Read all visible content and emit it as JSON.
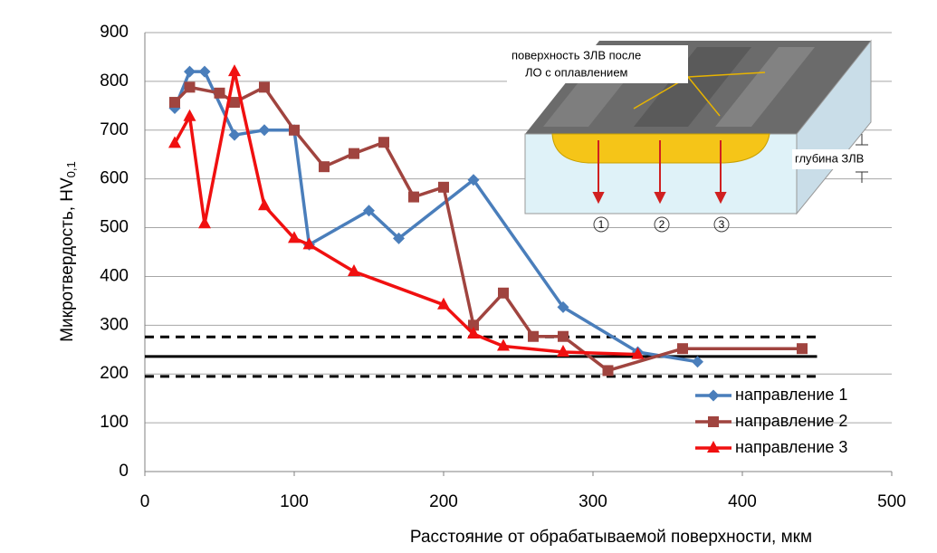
{
  "chart_data": {
    "type": "line",
    "y_label": {
      "text": "Микротвердость, HV",
      "subscript": "0,1"
    },
    "x_label": "Расстояние от обрабатываемой поверхности, мкм",
    "xlim": [
      0,
      500
    ],
    "xticks": [
      0,
      100,
      200,
      300,
      400,
      500
    ],
    "ylim": [
      0,
      900
    ],
    "yticks": [
      0,
      100,
      200,
      300,
      400,
      500,
      600,
      700,
      800,
      900
    ],
    "grid": true,
    "legend": "lower right",
    "series": [
      {
        "name": "направление 1",
        "color": "#4a7ebb",
        "marker": "diamond",
        "x": [
          20,
          30,
          40,
          60,
          80,
          100,
          110,
          150,
          170,
          220,
          280,
          330,
          370
        ],
        "values": [
          745,
          820,
          820,
          690,
          700,
          700,
          465,
          535,
          478,
          598,
          337,
          245,
          225
        ]
      },
      {
        "name": "направление 2",
        "color": "#a0443f",
        "marker": "square",
        "x": [
          20,
          30,
          50,
          60,
          80,
          100,
          120,
          140,
          160,
          180,
          200,
          220,
          240,
          260,
          280,
          310,
          360,
          440
        ],
        "values": [
          757,
          788,
          776,
          757,
          788,
          700,
          625,
          652,
          675,
          563,
          583,
          300,
          366,
          277,
          277,
          207,
          252,
          252
        ]
      },
      {
        "name": "направление 3",
        "color": "#f01010",
        "marker": "triangle",
        "x": [
          20,
          30,
          40,
          60,
          80,
          100,
          110,
          140,
          200,
          220,
          240,
          280,
          330
        ],
        "values": [
          673,
          728,
          508,
          820,
          545,
          478,
          465,
          410,
          342,
          282,
          257,
          245,
          240
        ]
      }
    ],
    "reference_lines": [
      {
        "value": 236,
        "style": "solid",
        "xrange": [
          0,
          450
        ]
      },
      {
        "value": 276,
        "style": "dashed",
        "xrange": [
          0,
          450
        ]
      },
      {
        "value": 195,
        "style": "dashed",
        "xrange": [
          0,
          450
        ]
      }
    ],
    "inset": {
      "surface_label": [
        "поверхность ЗЛВ после",
        "ЛО с оплавлением"
      ],
      "depth_label": "глубина ЗЛВ",
      "directions": [
        "1",
        "2",
        "3"
      ]
    }
  }
}
